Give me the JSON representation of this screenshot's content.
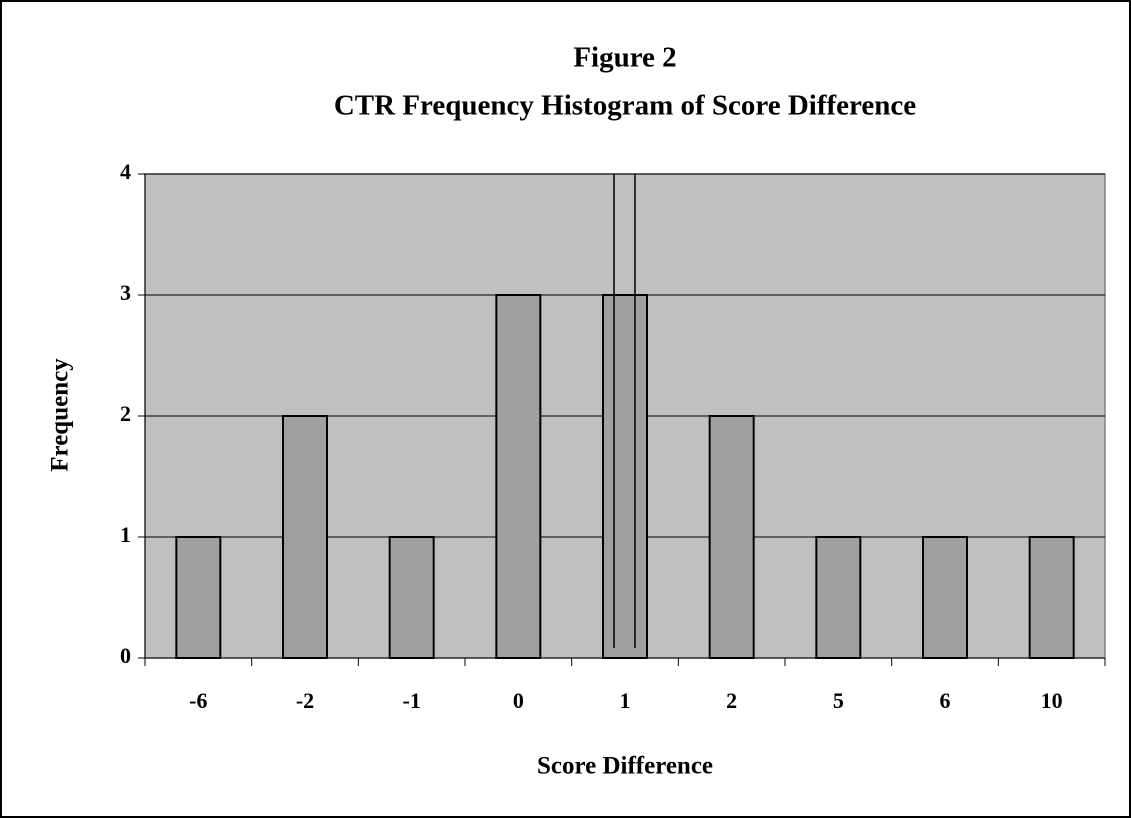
{
  "chart_data": {
    "type": "bar",
    "title": "Figure 2",
    "subtitle": "CTR Frequency Histogram of Score Difference",
    "x_label": "Score Difference",
    "y_label": "Frequency",
    "categories": [
      "-6",
      "-2",
      "-1",
      "0",
      "1",
      "2",
      "5",
      "6",
      "10"
    ],
    "values": [
      1,
      2,
      1,
      3,
      3,
      2,
      1,
      1,
      1
    ],
    "color": "#a0a0a0",
    "plot_background": "#c0c0c0",
    "ylim": [
      0,
      4
    ],
    "yticks": [
      0,
      1,
      2,
      3,
      4
    ],
    "grid": true
  }
}
